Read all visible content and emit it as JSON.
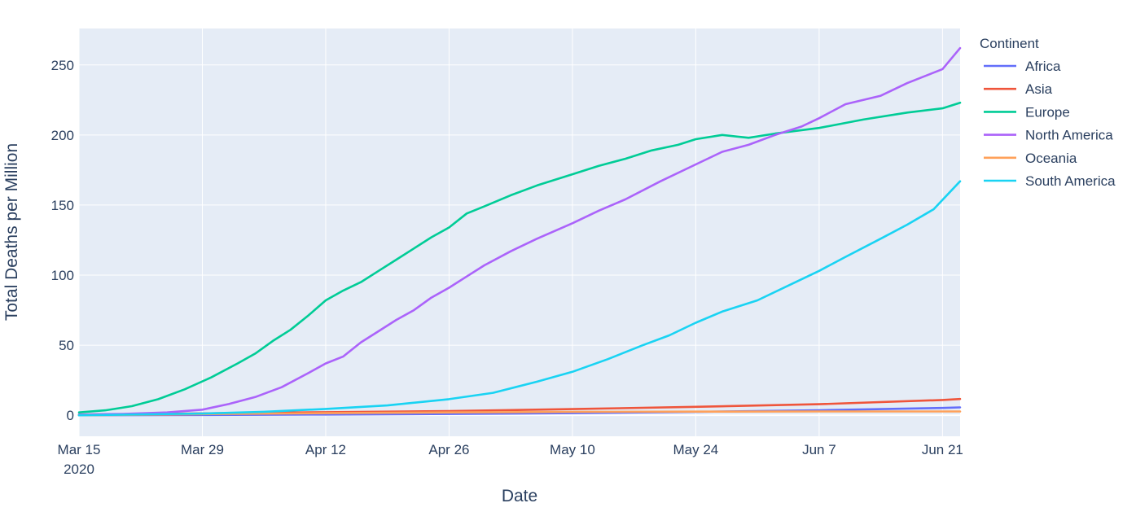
{
  "chart_data": {
    "type": "line",
    "xlabel": "Date",
    "ylabel": "Total Deaths per Million",
    "x_start": "2020-03-15",
    "x_end": "2020-06-23",
    "x_ticks": [
      {
        "date": "2020-03-15",
        "label": "Mar 15",
        "sublabel": "2020"
      },
      {
        "date": "2020-03-29",
        "label": "Mar 29"
      },
      {
        "date": "2020-04-12",
        "label": "Apr 12"
      },
      {
        "date": "2020-04-26",
        "label": "Apr 26"
      },
      {
        "date": "2020-05-10",
        "label": "May 10"
      },
      {
        "date": "2020-05-24",
        "label": "May 24"
      },
      {
        "date": "2020-06-07",
        "label": "Jun 7"
      },
      {
        "date": "2020-06-21",
        "label": "Jun 21"
      }
    ],
    "y_ticks": [
      0,
      50,
      100,
      150,
      200,
      250
    ],
    "ylim": [
      -15,
      276
    ],
    "grid": true,
    "legend": {
      "title": "Continent",
      "position": "right"
    },
    "series": [
      {
        "name": "Africa",
        "color": "#636efa",
        "points": [
          [
            "2020-03-15",
            0
          ],
          [
            "2020-03-29",
            0.2
          ],
          [
            "2020-04-12",
            0.5
          ],
          [
            "2020-04-26",
            0.9
          ],
          [
            "2020-05-10",
            1.5
          ],
          [
            "2020-05-24",
            2.4
          ],
          [
            "2020-06-07",
            3.6
          ],
          [
            "2020-06-21",
            5.2
          ],
          [
            "2020-06-23",
            5.6
          ]
        ]
      },
      {
        "name": "Asia",
        "color": "#ef553b",
        "points": [
          [
            "2020-03-15",
            0.5
          ],
          [
            "2020-03-29",
            1.3
          ],
          [
            "2020-04-12",
            2.2
          ],
          [
            "2020-04-26",
            3.0
          ],
          [
            "2020-05-10",
            4.4
          ],
          [
            "2020-05-24",
            6.0
          ],
          [
            "2020-06-07",
            7.9
          ],
          [
            "2020-06-21",
            10.9
          ],
          [
            "2020-06-23",
            11.6
          ]
        ]
      },
      {
        "name": "Europe",
        "color": "#00cc96",
        "points": [
          [
            "2020-03-15",
            2
          ],
          [
            "2020-03-18",
            3.5
          ],
          [
            "2020-03-21",
            6.5
          ],
          [
            "2020-03-24",
            11.5
          ],
          [
            "2020-03-27",
            18.5
          ],
          [
            "2020-03-30",
            27
          ],
          [
            "2020-04-02",
            37
          ],
          [
            "2020-04-04",
            44
          ],
          [
            "2020-04-06",
            53
          ],
          [
            "2020-04-08",
            61
          ],
          [
            "2020-04-10",
            71
          ],
          [
            "2020-04-12",
            82
          ],
          [
            "2020-04-14",
            89
          ],
          [
            "2020-04-16",
            95
          ],
          [
            "2020-04-18",
            103
          ],
          [
            "2020-04-20",
            111
          ],
          [
            "2020-04-22",
            119
          ],
          [
            "2020-04-24",
            127
          ],
          [
            "2020-04-26",
            134
          ],
          [
            "2020-04-28",
            144
          ],
          [
            "2020-04-30",
            149
          ],
          [
            "2020-05-03",
            157
          ],
          [
            "2020-05-06",
            164
          ],
          [
            "2020-05-10",
            172
          ],
          [
            "2020-05-13",
            178
          ],
          [
            "2020-05-16",
            183
          ],
          [
            "2020-05-19",
            189
          ],
          [
            "2020-05-22",
            193
          ],
          [
            "2020-05-24",
            197
          ],
          [
            "2020-05-27",
            200
          ],
          [
            "2020-05-30",
            198
          ],
          [
            "2020-06-02",
            201
          ],
          [
            "2020-06-07",
            205
          ],
          [
            "2020-06-12",
            211
          ],
          [
            "2020-06-17",
            216
          ],
          [
            "2020-06-21",
            219
          ],
          [
            "2020-06-23",
            223
          ]
        ]
      },
      {
        "name": "North America",
        "color": "#ab63fa",
        "points": [
          [
            "2020-03-15",
            0.5
          ],
          [
            "2020-03-20",
            1
          ],
          [
            "2020-03-25",
            2
          ],
          [
            "2020-03-29",
            4
          ],
          [
            "2020-04-01",
            8
          ],
          [
            "2020-04-04",
            13
          ],
          [
            "2020-04-07",
            20
          ],
          [
            "2020-04-10",
            30
          ],
          [
            "2020-04-12",
            37
          ],
          [
            "2020-04-14",
            42
          ],
          [
            "2020-04-16",
            52
          ],
          [
            "2020-04-18",
            60
          ],
          [
            "2020-04-20",
            68
          ],
          [
            "2020-04-22",
            75
          ],
          [
            "2020-04-24",
            84
          ],
          [
            "2020-04-26",
            91
          ],
          [
            "2020-04-28",
            99
          ],
          [
            "2020-04-30",
            107
          ],
          [
            "2020-05-03",
            117
          ],
          [
            "2020-05-06",
            126
          ],
          [
            "2020-05-10",
            137
          ],
          [
            "2020-05-13",
            146
          ],
          [
            "2020-05-16",
            154
          ],
          [
            "2020-05-20",
            167
          ],
          [
            "2020-05-24",
            179
          ],
          [
            "2020-05-27",
            188
          ],
          [
            "2020-05-30",
            193
          ],
          [
            "2020-06-02",
            200
          ],
          [
            "2020-06-05",
            206
          ],
          [
            "2020-06-07",
            212
          ],
          [
            "2020-06-10",
            222
          ],
          [
            "2020-06-14",
            228
          ],
          [
            "2020-06-17",
            237
          ],
          [
            "2020-06-21",
            247
          ],
          [
            "2020-06-23",
            262
          ]
        ]
      },
      {
        "name": "Oceania",
        "color": "#ffa15a",
        "points": [
          [
            "2020-03-15",
            0
          ],
          [
            "2020-03-29",
            0.8
          ],
          [
            "2020-04-12",
            1.5
          ],
          [
            "2020-04-26",
            2.0
          ],
          [
            "2020-05-10",
            2.4
          ],
          [
            "2020-05-24",
            2.6
          ],
          [
            "2020-06-07",
            2.7
          ],
          [
            "2020-06-21",
            2.7
          ],
          [
            "2020-06-23",
            2.7
          ]
        ]
      },
      {
        "name": "South America",
        "color": "#19d3f3",
        "points": [
          [
            "2020-03-15",
            0
          ],
          [
            "2020-03-29",
            1.2
          ],
          [
            "2020-04-05",
            2.5
          ],
          [
            "2020-04-12",
            4.5
          ],
          [
            "2020-04-19",
            7
          ],
          [
            "2020-04-26",
            11.5
          ],
          [
            "2020-05-01",
            16
          ],
          [
            "2020-05-06",
            24
          ],
          [
            "2020-05-10",
            31
          ],
          [
            "2020-05-14",
            40
          ],
          [
            "2020-05-18",
            50
          ],
          [
            "2020-05-21",
            57
          ],
          [
            "2020-05-24",
            66
          ],
          [
            "2020-05-27",
            74
          ],
          [
            "2020-05-31",
            82
          ],
          [
            "2020-06-04",
            94
          ],
          [
            "2020-06-07",
            103
          ],
          [
            "2020-06-10",
            113
          ],
          [
            "2020-06-14",
            126
          ],
          [
            "2020-06-17",
            136
          ],
          [
            "2020-06-20",
            147
          ],
          [
            "2020-06-23",
            167
          ]
        ]
      }
    ]
  }
}
